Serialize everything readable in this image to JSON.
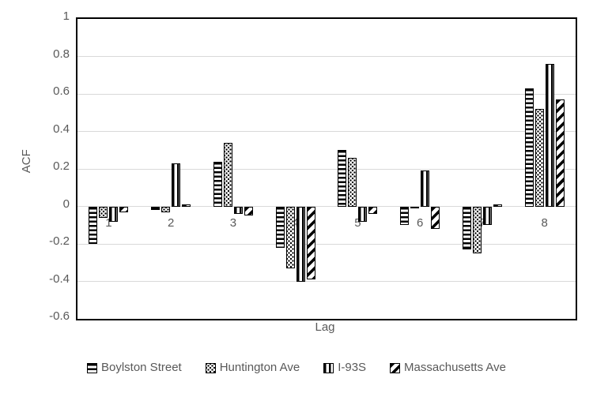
{
  "chart_data": {
    "type": "bar",
    "title": "",
    "xlabel": "Lag",
    "ylabel": "ACF",
    "categories": [
      "1",
      "2",
      "3",
      "4",
      "5",
      "6",
      "7",
      "8"
    ],
    "ylim": [
      -0.6,
      1
    ],
    "y_ticks": [
      1,
      0.8,
      0.6,
      0.4,
      0.2,
      0,
      -0.2,
      -0.4,
      -0.6
    ],
    "grid": true,
    "legend_position": "bottom",
    "series": [
      {
        "name": "Boylston Street",
        "pattern": "horizontal-stripes",
        "values": [
          -0.2,
          -0.02,
          0.24,
          -0.22,
          0.3,
          -0.1,
          -0.23,
          0.63
        ]
      },
      {
        "name": "Huntington Ave",
        "pattern": "dots",
        "values": [
          -0.06,
          -0.03,
          0.34,
          -0.33,
          0.26,
          -0.01,
          -0.25,
          0.52
        ]
      },
      {
        "name": "I-93S",
        "pattern": "vertical-stripes",
        "values": [
          -0.08,
          0.23,
          -0.04,
          -0.4,
          -0.08,
          0.19,
          -0.1,
          0.76
        ]
      },
      {
        "name": "Massachusetts Ave",
        "pattern": "diagonal-stripes",
        "values": [
          -0.03,
          0.01,
          -0.05,
          -0.39,
          -0.04,
          -0.12,
          0.01,
          0.57
        ]
      }
    ],
    "colors": {
      "bar_fill": "#ffffff",
      "bar_stroke": "#000000",
      "grid": "#d9d9d9",
      "text": "#595959",
      "plot_border": "#000000"
    }
  }
}
